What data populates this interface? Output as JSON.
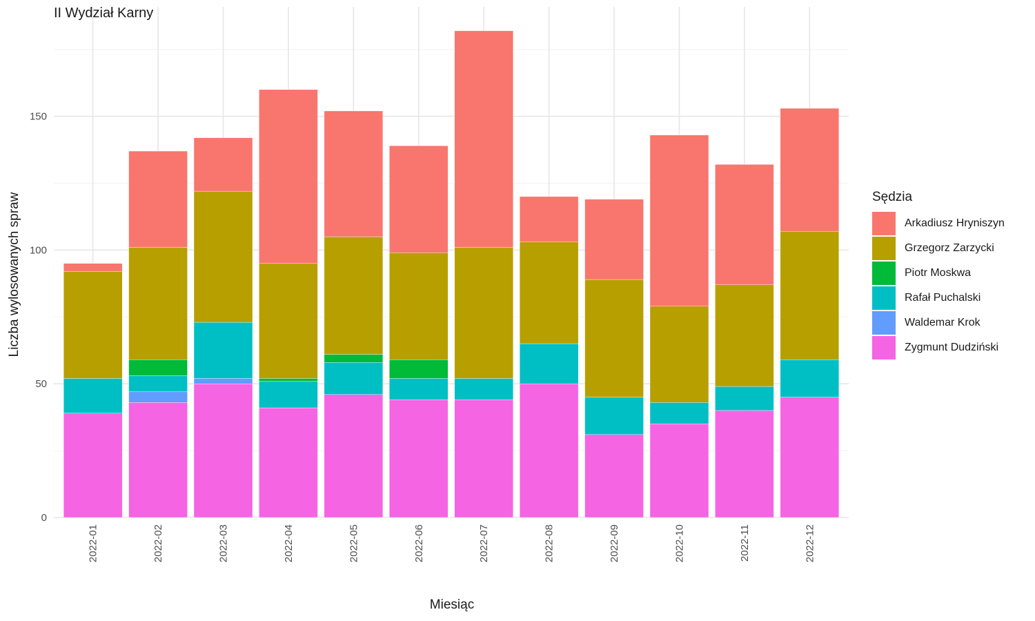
{
  "chart_data": {
    "type": "bar",
    "stacked": true,
    "title": "II Wydział Karny",
    "xlabel": "Miesiąc",
    "ylabel": "Liczba wylosowanych spraw",
    "ylim": [
      0,
      190
    ],
    "yticks": [
      0,
      50,
      100,
      150
    ],
    "grid": true,
    "legend_title": "Sędzia",
    "legend_position": "right",
    "categories": [
      "2022-01",
      "2022-02",
      "2022-03",
      "2022-04",
      "2022-05",
      "2022-06",
      "2022-07",
      "2022-08",
      "2022-09",
      "2022-10",
      "2022-11",
      "2022-12"
    ],
    "series": [
      {
        "name": "Zygmunt Dudziński",
        "color": "#F564E3",
        "values": [
          39,
          43,
          50,
          41,
          46,
          44,
          44,
          50,
          31,
          35,
          40,
          45
        ]
      },
      {
        "name": "Waldemar Krok",
        "color": "#619CFF",
        "values": [
          0,
          4,
          2,
          0,
          0,
          0,
          0,
          0,
          0,
          0,
          0,
          0
        ]
      },
      {
        "name": "Rafał Puchalski",
        "color": "#00BFC4",
        "values": [
          13,
          6,
          21,
          10,
          12,
          8,
          8,
          15,
          14,
          8,
          9,
          14
        ]
      },
      {
        "name": "Piotr Moskwa",
        "color": "#00BA38",
        "values": [
          0,
          6,
          0,
          1,
          3,
          7,
          0,
          0,
          0,
          0,
          0,
          0
        ]
      },
      {
        "name": "Grzegorz Zarzycki",
        "color": "#B79F00",
        "values": [
          40,
          42,
          49,
          43,
          44,
          40,
          49,
          38,
          44,
          36,
          38,
          48
        ]
      },
      {
        "name": "Arkadiusz Hryniszyn",
        "color": "#F8766D",
        "values": [
          3,
          36,
          20,
          65,
          47,
          40,
          81,
          17,
          30,
          64,
          45,
          46
        ]
      }
    ],
    "legend_order": [
      "Arkadiusz Hryniszyn",
      "Grzegorz Zarzycki",
      "Piotr Moskwa",
      "Rafał Puchalski",
      "Waldemar Krok",
      "Zygmunt Dudziński"
    ]
  }
}
